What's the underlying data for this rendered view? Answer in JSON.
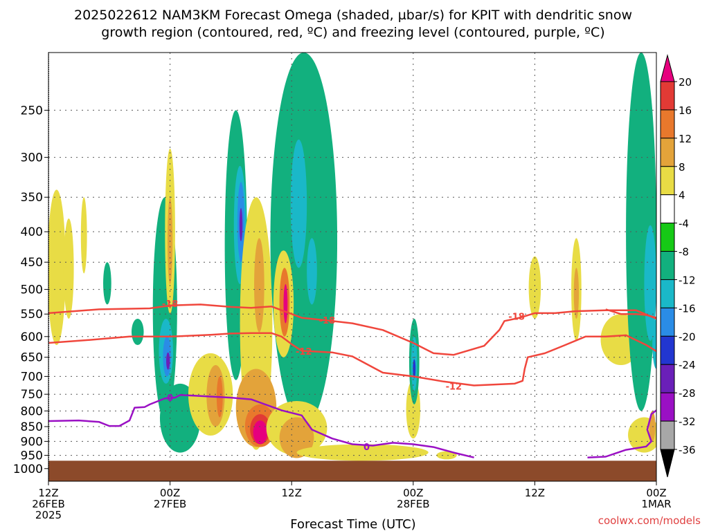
{
  "title": {
    "line1": "2025022612 NAM3KM Forecast Omega (shaded, µbar/s) for KPIT with dendritic snow",
    "line2": "growth region (contoured, red, ºC) and freezing level (contoured, purple, ºC)"
  },
  "xaxis_title": "Forecast Time (UTC)",
  "credit": "coolwx.com/models",
  "colors": {
    "ground": "#8c4a2a",
    "dgz_contour": "#f0463c",
    "freezing_contour": "#9a10c4",
    "credit_text": "#e04040",
    "grid": "#555555"
  },
  "chart_data": {
    "type": "heatmap",
    "title": "2025022612 NAM3KM Forecast Omega (shaded, µbar/s) for KPIT with dendritic snow growth region (contoured, red, ºC) and freezing level (contoured, purple, ºC)",
    "xlabel": "Forecast Time (UTC)",
    "ylabel": "",
    "x_range_hours": [
      0,
      60
    ],
    "x_ticks": [
      {
        "hour": 0,
        "lines": [
          "12Z",
          "26FEB",
          "2025"
        ]
      },
      {
        "hour": 12,
        "lines": [
          "00Z",
          "27FEB"
        ]
      },
      {
        "hour": 24,
        "lines": [
          "12Z"
        ]
      },
      {
        "hour": 36,
        "lines": [
          "00Z",
          "28FEB"
        ]
      },
      {
        "hour": 48,
        "lines": [
          "12Z"
        ]
      },
      {
        "hour": 60,
        "lines": [
          "00Z",
          "1MAR"
        ]
      }
    ],
    "y_scale": "log-pressure",
    "y_range_hpa": [
      1050,
      200
    ],
    "y_ticks": [
      250,
      300,
      350,
      400,
      450,
      500,
      550,
      600,
      650,
      700,
      750,
      800,
      850,
      900,
      950,
      1000
    ],
    "grid": true,
    "ground_level_hpa": 970,
    "colorbar": {
      "placement": "right",
      "levels": [
        "20",
        "16",
        "12",
        "8",
        "4",
        "-4",
        "-8",
        "-12",
        "-16",
        "-20",
        "-24",
        "-28",
        "-32",
        "-36"
      ],
      "bins": [
        {
          "color": "#e6007e"
        },
        {
          "color": "#e23a35"
        },
        {
          "color": "#e8782c"
        },
        {
          "color": "#e3a33a"
        },
        {
          "color": "#e8dc45"
        },
        {
          "color": "#ffffff"
        },
        {
          "color": "#16c916"
        },
        {
          "color": "#12b07e"
        },
        {
          "color": "#1ab8c8"
        },
        {
          "color": "#2a8ce6"
        },
        {
          "color": "#2236d0"
        },
        {
          "color": "#6a1fb8"
        },
        {
          "color": "#9a10c4"
        },
        {
          "color": "#a7a7a7"
        },
        {
          "color": "#000000"
        }
      ]
    },
    "omega_regions": [
      {
        "value": 4,
        "hour": 0.8,
        "hpa": 480,
        "rx": 0.9,
        "rp": 140
      },
      {
        "value": 4,
        "hour": 2.0,
        "hpa": 470,
        "rx": 0.5,
        "rp": 90
      },
      {
        "value": 4,
        "hour": 3.5,
        "hpa": 410,
        "rx": 0.3,
        "rp": 60
      },
      {
        "value": -8,
        "hour": 5.8,
        "hpa": 490,
        "rx": 0.4,
        "rp": 40
      },
      {
        "value": -8,
        "hour": 8.8,
        "hpa": 590,
        "rx": 0.6,
        "rp": 30
      },
      {
        "value": -8,
        "hour": 11.5,
        "hpa": 590,
        "rx": 1.2,
        "rp": 240
      },
      {
        "value": -12,
        "hour": 11.6,
        "hpa": 640,
        "rx": 0.7,
        "rp": 80
      },
      {
        "value": -16,
        "hour": 11.7,
        "hpa": 650,
        "rx": 0.4,
        "rp": 50
      },
      {
        "value": -24,
        "hour": 11.8,
        "hpa": 660,
        "rx": 0.18,
        "rp": 22
      },
      {
        "value": 4,
        "hour": 12.0,
        "hpa": 420,
        "rx": 0.5,
        "rp": 130
      },
      {
        "value": 8,
        "hour": 12.0,
        "hpa": 420,
        "rx": 0.25,
        "rp": 70
      },
      {
        "value": -8,
        "hour": 13.0,
        "hpa": 830,
        "rx": 2.0,
        "rp": 110
      },
      {
        "value": 4,
        "hour": 16.0,
        "hpa": 760,
        "rx": 2.2,
        "rp": 120
      },
      {
        "value": 8,
        "hour": 16.5,
        "hpa": 760,
        "rx": 0.9,
        "rp": 90
      },
      {
        "value": 12,
        "hour": 16.9,
        "hpa": 760,
        "rx": 0.3,
        "rp": 60
      },
      {
        "value": -8,
        "hour": 18.5,
        "hpa": 480,
        "rx": 1.1,
        "rp": 230
      },
      {
        "value": -12,
        "hour": 18.9,
        "hpa": 400,
        "rx": 0.6,
        "rp": 90
      },
      {
        "value": -16,
        "hour": 19.0,
        "hpa": 390,
        "rx": 0.35,
        "rp": 60
      },
      {
        "value": -24,
        "hour": 19.0,
        "hpa": 390,
        "rx": 0.15,
        "rp": 25
      },
      {
        "value": 4,
        "hour": 20.5,
        "hpa": 640,
        "rx": 1.6,
        "rp": 290
      },
      {
        "value": 8,
        "hour": 20.5,
        "hpa": 800,
        "rx": 2.0,
        "rp": 120
      },
      {
        "value": 12,
        "hour": 20.9,
        "hpa": 850,
        "rx": 1.5,
        "rp": 70
      },
      {
        "value": 16,
        "hour": 20.9,
        "hpa": 860,
        "rx": 1.0,
        "rp": 50
      },
      {
        "value": 20,
        "hour": 20.9,
        "hpa": 870,
        "rx": 0.7,
        "rp": 40
      },
      {
        "value": 8,
        "hour": 20.8,
        "hpa": 500,
        "rx": 0.5,
        "rp": 90
      },
      {
        "value": -8,
        "hour": 25.2,
        "hpa": 520,
        "rx": 3.3,
        "rp": 330
      },
      {
        "value": -12,
        "hour": 24.7,
        "hpa": 370,
        "rx": 0.8,
        "rp": 90
      },
      {
        "value": -12,
        "hour": 26.0,
        "hpa": 470,
        "rx": 0.5,
        "rp": 60
      },
      {
        "value": 4,
        "hour": 23.2,
        "hpa": 540,
        "rx": 1.0,
        "rp": 110
      },
      {
        "value": 12,
        "hour": 23.3,
        "hpa": 530,
        "rx": 0.5,
        "rp": 70
      },
      {
        "value": 20,
        "hour": 23.4,
        "hpa": 530,
        "rx": 0.2,
        "rp": 40
      },
      {
        "value": 4,
        "hour": 24.5,
        "hpa": 860,
        "rx": 3.0,
        "rp": 90
      },
      {
        "value": 8,
        "hour": 24.5,
        "hpa": 890,
        "rx": 1.7,
        "rp": 70
      },
      {
        "value": 4,
        "hour": 31.0,
        "hpa": 940,
        "rx": 6.5,
        "rp": 30
      },
      {
        "value": 4,
        "hour": 36.0,
        "hpa": 800,
        "rx": 0.7,
        "rp": 90
      },
      {
        "value": -8,
        "hour": 36.1,
        "hpa": 670,
        "rx": 0.5,
        "rp": 110
      },
      {
        "value": -12,
        "hour": 36.1,
        "hpa": 670,
        "rx": 0.3,
        "rp": 70
      },
      {
        "value": -20,
        "hour": 36.1,
        "hpa": 680,
        "rx": 0.12,
        "rp": 25
      },
      {
        "value": 4,
        "hour": 39.3,
        "hpa": 950,
        "rx": 1.0,
        "rp": 15
      },
      {
        "value": 4,
        "hour": 48.0,
        "hpa": 500,
        "rx": 0.6,
        "rp": 60
      },
      {
        "value": 4,
        "hour": 52.1,
        "hpa": 510,
        "rx": 0.5,
        "rp": 100
      },
      {
        "value": 8,
        "hour": 52.1,
        "hpa": 510,
        "rx": 0.25,
        "rp": 50
      },
      {
        "value": 4,
        "hour": 56.5,
        "hpa": 610,
        "rx": 2.0,
        "rp": 60
      },
      {
        "value": -8,
        "hour": 58.5,
        "hpa": 500,
        "rx": 1.5,
        "rp": 300
      },
      {
        "value": -12,
        "hour": 59.4,
        "hpa": 500,
        "rx": 0.6,
        "rp": 110
      },
      {
        "value": -12,
        "hour": 60.0,
        "hpa": 620,
        "rx": 0.4,
        "rp": 60
      },
      {
        "value": 4,
        "hour": 58.8,
        "hpa": 880,
        "rx": 1.6,
        "rp": 60
      },
      {
        "value": 8,
        "hour": 59.6,
        "hpa": 850,
        "rx": 0.3,
        "rp": 50
      }
    ],
    "contours": [
      {
        "kind": "dgz",
        "label": "-18",
        "label_points": [
          {
            "hour": 12.0,
            "hpa": 528
          },
          {
            "hour": 27.5,
            "hpa": 563
          },
          {
            "hour": 46.2,
            "hpa": 555
          }
        ],
        "points": [
          [
            0,
            548
          ],
          [
            5,
            540
          ],
          [
            10,
            538
          ],
          [
            12,
            532
          ],
          [
            15,
            530
          ],
          [
            18,
            535
          ],
          [
            20,
            537
          ],
          [
            22,
            534
          ],
          [
            25,
            558
          ],
          [
            28,
            565
          ],
          [
            30,
            570
          ],
          [
            33,
            585
          ],
          [
            36,
            615
          ],
          [
            38,
            640
          ],
          [
            40,
            644
          ],
          [
            43,
            622
          ],
          [
            44.5,
            585
          ],
          [
            45,
            565
          ],
          [
            46.5,
            558
          ],
          [
            48,
            548
          ],
          [
            50,
            548
          ],
          [
            52,
            544
          ],
          [
            55,
            542
          ],
          [
            58,
            542
          ],
          [
            60,
            560
          ]
        ]
      },
      {
        "kind": "dgz",
        "label": "-18",
        "label_points": [],
        "points": [
          [
            55,
            540
          ],
          [
            56.5,
            550
          ],
          [
            58,
            550
          ],
          [
            59,
            552
          ],
          [
            60,
            558
          ]
        ]
      },
      {
        "kind": "dgz",
        "label": "-12",
        "label_points": [
          {
            "hour": 25.2,
            "hpa": 635
          },
          {
            "hour": 40.0,
            "hpa": 727
          }
        ],
        "points": [
          [
            0,
            615
          ],
          [
            4,
            608
          ],
          [
            8,
            600
          ],
          [
            12,
            600
          ],
          [
            16,
            596
          ],
          [
            18,
            593
          ],
          [
            20,
            592
          ],
          [
            22,
            592
          ],
          [
            23,
            600
          ],
          [
            24,
            618
          ],
          [
            25,
            634
          ],
          [
            28,
            638
          ],
          [
            30,
            648
          ],
          [
            33,
            690
          ],
          [
            36,
            700
          ],
          [
            39,
            714
          ],
          [
            42,
            725
          ],
          [
            46,
            720
          ],
          [
            46.8,
            712
          ],
          [
            47,
            680
          ],
          [
            47.3,
            650
          ],
          [
            49,
            640
          ],
          [
            51,
            620
          ],
          [
            53,
            600
          ],
          [
            55,
            600
          ],
          [
            57,
            597
          ],
          [
            59,
            620
          ],
          [
            60,
            635
          ]
        ]
      },
      {
        "kind": "freezing",
        "label": "0",
        "label_points": [
          {
            "hour": 12.0,
            "hpa": 760
          },
          {
            "hour": 31.4,
            "hpa": 918
          }
        ],
        "points": [
          [
            0,
            832
          ],
          [
            3,
            830
          ],
          [
            5,
            835
          ],
          [
            6,
            848
          ],
          [
            7,
            848
          ],
          [
            8,
            830
          ],
          [
            8.5,
            790
          ],
          [
            9.5,
            788
          ],
          [
            10,
            780
          ],
          [
            11.5,
            762
          ],
          [
            12.5,
            760
          ],
          [
            13,
            752
          ],
          [
            15,
            755
          ],
          [
            18,
            760
          ],
          [
            20,
            765
          ],
          [
            23,
            798
          ],
          [
            25,
            814
          ],
          [
            26,
            860
          ],
          [
            28,
            890
          ],
          [
            30,
            910
          ],
          [
            32,
            915
          ],
          [
            34,
            905
          ],
          [
            36,
            910
          ],
          [
            38,
            920
          ],
          [
            40,
            940
          ],
          [
            42,
            958
          ]
        ]
      },
      {
        "kind": "freezing",
        "label": "0",
        "label_points": [],
        "points": [
          [
            53.2,
            958
          ],
          [
            55,
            955
          ],
          [
            57,
            930
          ],
          [
            59,
            918
          ],
          [
            59.5,
            900
          ],
          [
            59.1,
            860
          ],
          [
            59.5,
            810
          ],
          [
            60,
            798
          ]
        ]
      }
    ]
  }
}
